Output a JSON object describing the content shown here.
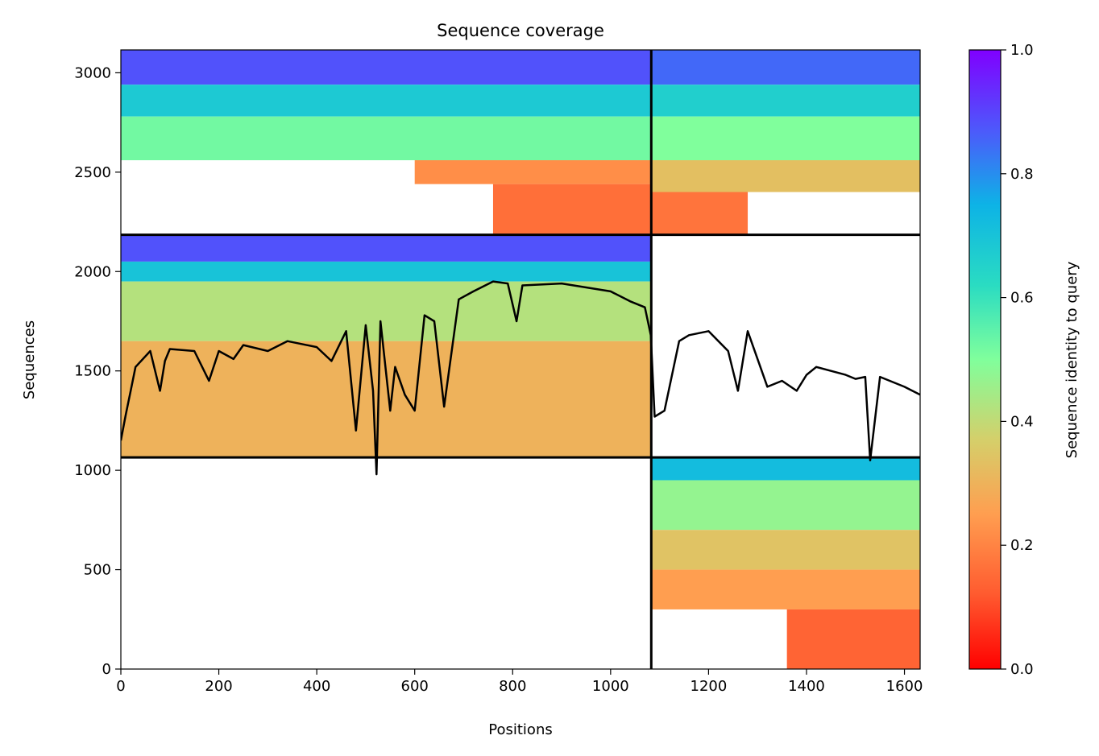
{
  "chart_data": {
    "type": "heatmap",
    "title": "Sequence coverage",
    "xlabel": "Positions",
    "ylabel": "Sequences",
    "xlim": [
      0,
      1632
    ],
    "ylim": [
      0,
      3115
    ],
    "x_ticks": [
      0,
      200,
      400,
      600,
      800,
      1000,
      1200,
      1400,
      1600
    ],
    "y_ticks": [
      0,
      500,
      1000,
      1500,
      2000,
      2500,
      3000
    ],
    "grid": false,
    "colorbar": {
      "label": "Sequence identity to query",
      "colormap": "rainbow_r",
      "range": [
        0.0,
        1.0
      ],
      "ticks": [
        0.0,
        0.2,
        0.4,
        0.6,
        0.8,
        1.0
      ],
      "tick_labels": [
        "0.0",
        "0.2",
        "0.4",
        "0.6",
        "0.8",
        "1.0"
      ]
    },
    "chain_boundaries": {
      "x": [
        1083
      ],
      "y": [
        1065,
        2185
      ]
    },
    "blocks": [
      {
        "x": [
          0,
          1083
        ],
        "y": [
          2185,
          3115
        ],
        "bands": [
          [
            2940,
            3115,
            0.88
          ],
          [
            2780,
            2940,
            0.68
          ],
          [
            2560,
            2780,
            0.52
          ],
          [
            2440,
            2560,
            0.22
          ],
          [
            2185,
            2440,
            0.16
          ]
        ],
        "notch_x_start": [
          [
            2440,
            2560,
            600
          ],
          [
            2185,
            2440,
            760
          ]
        ]
      },
      {
        "x": [
          1083,
          1632
        ],
        "y": [
          2185,
          3115
        ],
        "bands": [
          [
            2940,
            3115,
            0.85
          ],
          [
            2780,
            2940,
            0.66
          ],
          [
            2560,
            2780,
            0.5
          ],
          [
            2400,
            2560,
            0.33
          ],
          [
            2185,
            2400,
            0.17
          ]
        ],
        "notch_x_end": [
          [
            2185,
            2400,
            1280
          ]
        ]
      },
      {
        "x": [
          0,
          1083
        ],
        "y": [
          1065,
          2185
        ],
        "bands": [
          [
            2050,
            2185,
            0.88
          ],
          [
            1950,
            2050,
            0.7
          ],
          [
            1650,
            1950,
            0.42
          ],
          [
            1065,
            1650,
            0.3
          ]
        ]
      },
      {
        "x": [
          1083,
          1632
        ],
        "y": [
          0,
          1065
        ],
        "bands": [
          [
            950,
            1065,
            0.72
          ],
          [
            700,
            950,
            0.47
          ],
          [
            500,
            700,
            0.34
          ],
          [
            300,
            500,
            0.25
          ],
          [
            0,
            300,
            0.14
          ]
        ],
        "notch_x_start": [
          [
            0,
            300,
            1360
          ]
        ]
      }
    ],
    "coverage": {
      "x": [
        0,
        10,
        20,
        30,
        60,
        80,
        90,
        100,
        150,
        180,
        200,
        230,
        250,
        300,
        340,
        400,
        430,
        460,
        480,
        500,
        515,
        522,
        530,
        550,
        560,
        580,
        600,
        620,
        640,
        660,
        690,
        720,
        760,
        790,
        808,
        820,
        900,
        1000,
        1040,
        1070,
        1082,
        1090,
        1110,
        1140,
        1160,
        1200,
        1240,
        1260,
        1280,
        1320,
        1350,
        1380,
        1400,
        1420,
        1450,
        1480,
        1500,
        1520,
        1530,
        1550,
        1600,
        1632
      ],
      "y": [
        1150,
        1280,
        1400,
        1520,
        1600,
        1400,
        1550,
        1610,
        1600,
        1450,
        1600,
        1560,
        1630,
        1600,
        1650,
        1620,
        1550,
        1700,
        1200,
        1730,
        1400,
        980,
        1750,
        1300,
        1520,
        1380,
        1300,
        1780,
        1750,
        1320,
        1860,
        1900,
        1950,
        1940,
        1750,
        1930,
        1940,
        1900,
        1850,
        1820,
        1680,
        1270,
        1300,
        1650,
        1680,
        1700,
        1600,
        1400,
        1700,
        1420,
        1450,
        1400,
        1480,
        1520,
        1500,
        1480,
        1460,
        1470,
        1050,
        1470,
        1420,
        1380
      ]
    }
  }
}
